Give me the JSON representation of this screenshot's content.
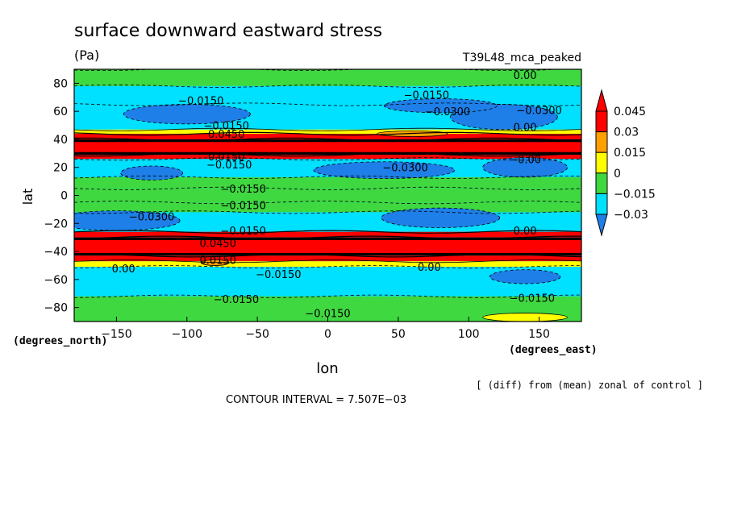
{
  "chart_data": {
    "type": "heatmap",
    "title": "surface downward eastward stress",
    "units": "(Pa)",
    "experiment": "T39L48_mca_peaked",
    "xlabel": "lon",
    "ylabel": "lat",
    "x_units": "(degrees_east)",
    "y_units": "(degrees_north)",
    "xlim": [
      -180,
      180
    ],
    "ylim": [
      -90,
      90
    ],
    "x_ticks": [
      -150,
      -100,
      -50,
      0,
      50,
      100,
      150
    ],
    "y_ticks": [
      80,
      60,
      40,
      20,
      0,
      -20,
      -40,
      -60,
      -80
    ],
    "x_tick_labels": [
      "−150",
      "−100",
      "−50",
      "0",
      "50",
      "100",
      "150"
    ],
    "y_tick_labels": [
      "80",
      "60",
      "40",
      "20",
      "0",
      "−20",
      "−40",
      "−60",
      "−80"
    ],
    "colorbar": {
      "levels": [
        -0.03,
        -0.015,
        0,
        0.015,
        0.03,
        0.045
      ],
      "level_labels": [
        "−0.03",
        "−0.015",
        "0",
        "0.015",
        "0.03",
        "0.045"
      ],
      "colors": [
        "#1e7fe8",
        "#00e0ff",
        "#40d840",
        "#ffff00",
        "#ffa000",
        "#ff0000"
      ],
      "extend": "both"
    },
    "zonal_bands": [
      {
        "lat_min": 78,
        "lat_max": 90,
        "value": -0.01
      },
      {
        "lat_min": 65,
        "lat_max": 78,
        "value": -0.016
      },
      {
        "lat_min": 47,
        "lat_max": 65,
        "value": -0.022
      },
      {
        "lat_min": 44,
        "lat_max": 47,
        "value": 0.012
      },
      {
        "lat_min": 40,
        "lat_max": 44,
        "value": 0.035
      },
      {
        "lat_min": 29,
        "lat_max": 40,
        "value": 0.05
      },
      {
        "lat_min": 26,
        "lat_max": 29,
        "value": 0.03
      },
      {
        "lat_min": 13,
        "lat_max": 26,
        "value": -0.02
      },
      {
        "lat_min": 5,
        "lat_max": 13,
        "value": -0.008
      },
      {
        "lat_min": -5,
        "lat_max": 5,
        "value": -0.01
      },
      {
        "lat_min": -12,
        "lat_max": -5,
        "value": -0.009
      },
      {
        "lat_min": -26,
        "lat_max": -12,
        "value": -0.022
      },
      {
        "lat_min": -30,
        "lat_max": -26,
        "value": 0.03
      },
      {
        "lat_min": -43,
        "lat_max": -30,
        "value": 0.05
      },
      {
        "lat_min": -47,
        "lat_max": -43,
        "value": 0.035
      },
      {
        "lat_min": -51,
        "lat_max": -47,
        "value": 0.01
      },
      {
        "lat_min": -72,
        "lat_max": -51,
        "value": -0.016
      },
      {
        "lat_min": -90,
        "lat_max": -72,
        "value": -0.009
      }
    ],
    "blobs": [
      {
        "lon": -100,
        "lat": 58,
        "rlon": 45,
        "rlat": 7,
        "value": -0.035
      },
      {
        "lon": 125,
        "lat": 56,
        "rlon": 38,
        "rlat": 9,
        "value": -0.035
      },
      {
        "lon": 80,
        "lat": 64,
        "rlon": 40,
        "rlat": 5,
        "value": -0.033
      },
      {
        "lon": -125,
        "lat": 16,
        "rlon": 22,
        "rlat": 5,
        "value": -0.034
      },
      {
        "lon": 40,
        "lat": 18,
        "rlon": 50,
        "rlat": 6,
        "value": -0.034
      },
      {
        "lon": 140,
        "lat": 20,
        "rlon": 30,
        "rlat": 7,
        "value": -0.032
      },
      {
        "lon": -150,
        "lat": -18,
        "rlon": 45,
        "rlat": 7,
        "value": -0.035
      },
      {
        "lon": 80,
        "lat": -16,
        "rlon": 42,
        "rlat": 7,
        "value": -0.035
      },
      {
        "lon": 140,
        "lat": -58,
        "rlon": 25,
        "rlat": 5,
        "value": -0.032
      },
      {
        "lon": 60,
        "lat": 44,
        "rlon": 25,
        "rlat": 2,
        "value": 0.018
      },
      {
        "lon": -80,
        "lat": -48,
        "rlon": 10,
        "rlat": 2,
        "value": 0.02
      },
      {
        "lon": 140,
        "lat": -87,
        "rlon": 30,
        "rlat": 3,
        "value": 0.003
      }
    ],
    "contour_labels": [
      {
        "text": "0.00",
        "lon": 140,
        "lat": 86
      },
      {
        "text": "−0.0150",
        "lon": 70,
        "lat": 72
      },
      {
        "text": "−0.0150",
        "lon": -90,
        "lat": 68
      },
      {
        "text": "−0.0300",
        "lon": 85,
        "lat": 60
      },
      {
        "text": "−0.0300",
        "lon": 150,
        "lat": 61
      },
      {
        "text": "−0.0150",
        "lon": -72,
        "lat": 50
      },
      {
        "text": "0.00",
        "lon": 140,
        "lat": 49
      },
      {
        "text": "0.0450",
        "lon": -72,
        "lat": 44
      },
      {
        "text": "0.0150",
        "lon": -72,
        "lat": 28
      },
      {
        "text": "−0.0150",
        "lon": -70,
        "lat": 22
      },
      {
        "text": "−0.0300",
        "lon": 55,
        "lat": 20
      },
      {
        "text": "−0.00",
        "lon": 140,
        "lat": 26
      },
      {
        "text": "−0.0150",
        "lon": -60,
        "lat": 5
      },
      {
        "text": "−0.0150",
        "lon": -60,
        "lat": -7
      },
      {
        "text": "−0.0300",
        "lon": -125,
        "lat": -15
      },
      {
        "text": "0.00",
        "lon": 140,
        "lat": -25
      },
      {
        "text": "−0.0150",
        "lon": -60,
        "lat": -25
      },
      {
        "text": "0.0450",
        "lon": -78,
        "lat": -34
      },
      {
        "text": "0.0150",
        "lon": -78,
        "lat": -46
      },
      {
        "text": "0.00",
        "lon": -145,
        "lat": -52
      },
      {
        "text": "−0.0150",
        "lon": -35,
        "lat": -56
      },
      {
        "text": "0.00",
        "lon": 72,
        "lat": -51
      },
      {
        "text": "−0.0150",
        "lon": -65,
        "lat": -74
      },
      {
        "text": "−0.0150",
        "lon": 145,
        "lat": -73
      },
      {
        "text": "−0.0150",
        "lon": 0,
        "lat": -84
      }
    ]
  },
  "footer": {
    "diff_note": "[ (diff) from (mean) zonal of control ]",
    "contour_interval": "CONTOUR INTERVAL = 7.507E−03"
  }
}
